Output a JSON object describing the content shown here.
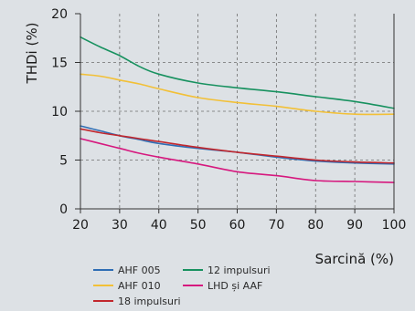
{
  "chart_data": {
    "type": "line",
    "xlabel": "Sarcină (%)",
    "ylabel": "THDi (%)",
    "xlim": [
      20,
      100
    ],
    "ylim": [
      0,
      20
    ],
    "x_ticks": [
      20,
      30,
      40,
      50,
      60,
      70,
      80,
      90,
      100
    ],
    "y_ticks": [
      0,
      5,
      10,
      15,
      20
    ],
    "grid": "dashed",
    "legend_position": "bottom",
    "x": [
      20,
      25,
      30,
      35,
      40,
      50,
      60,
      70,
      80,
      90,
      100
    ],
    "series": [
      {
        "name": "AHF 005",
        "color": "#2e6db4",
        "values": [
          8.5,
          8.0,
          7.5,
          7.1,
          6.7,
          6.2,
          5.8,
          5.3,
          4.9,
          4.7,
          4.6
        ]
      },
      {
        "name": "AHF 010",
        "color": "#f2c037",
        "values": [
          13.8,
          13.6,
          13.2,
          12.8,
          12.3,
          11.4,
          10.9,
          10.5,
          10.0,
          9.7,
          9.7
        ]
      },
      {
        "name": "18 impulsuri",
        "color": "#c2272d",
        "values": [
          8.2,
          7.8,
          7.5,
          7.2,
          6.9,
          6.3,
          5.8,
          5.4,
          5.0,
          4.8,
          4.7
        ]
      },
      {
        "name": "12 impulsuri",
        "color": "#17915f",
        "values": [
          17.6,
          16.6,
          15.7,
          14.6,
          13.8,
          12.9,
          12.4,
          12.0,
          11.5,
          11.0,
          10.3
        ]
      },
      {
        "name": "LHD și AAF",
        "color": "#d6187e",
        "values": [
          7.2,
          6.7,
          6.2,
          5.7,
          5.3,
          4.6,
          3.8,
          3.4,
          2.9,
          2.8,
          2.7
        ]
      }
    ]
  }
}
